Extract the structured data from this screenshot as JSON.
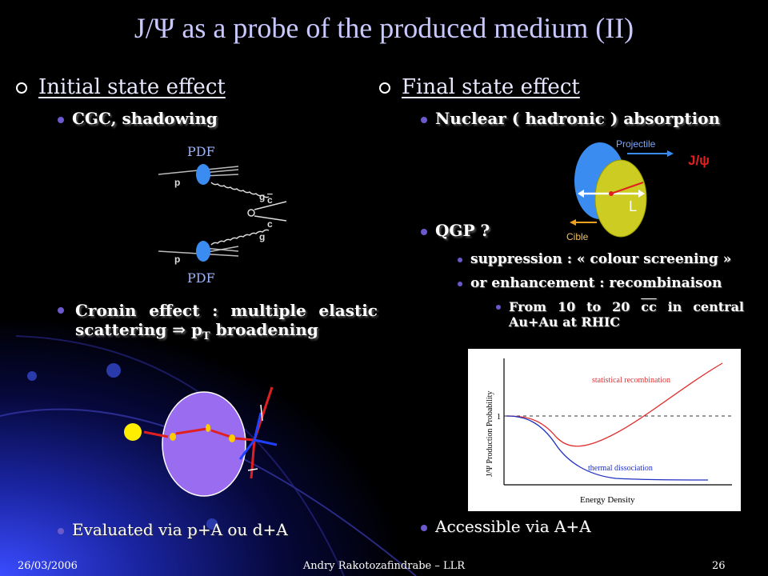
{
  "slide": {
    "title": "J/Ψ as a probe of the produced medium (II)",
    "left": {
      "heading": "Initial state effect",
      "item1": "CGC, shadowing",
      "pdf_top": "PDF",
      "pdf_bottom": "PDF",
      "feynman": {
        "p1": "p",
        "p2": "p",
        "g1": "g",
        "g2": "g",
        "c1": "c",
        "c2": "c"
      },
      "item2_line1": "Cronin effect : multiple elastic",
      "item2_line2_a": "scattering ",
      "item2_arrow": "⇒",
      "item2_line2_b": " p",
      "item2_sub": "T",
      "item2_line2_c": " broadening",
      "item3": "Evaluated via p+A ou d+A"
    },
    "right": {
      "heading": "Final state effect",
      "item1": "Nuclear ( hadronic ) absorption",
      "diagram": {
        "projectile": "Projectile",
        "jpsi": "J/ψ",
        "length": "L",
        "cible": "Cible"
      },
      "item2": "QGP ?",
      "sub1": "suppression : « colour screening »",
      "sub2": "or enhancement : recombinaison",
      "subsub_line1_a": "From 10 to 20 ",
      "subsub_cc": "cc",
      "subsub_line1_b": " in central",
      "subsub_line2": "Au+Au at RHIC",
      "graph": {
        "ylabel": "J/Ψ Production Probability",
        "xlabel": "Energy Density",
        "y_tick": "1",
        "curve1": "statistical recombination",
        "curve2": "thermal dissociation"
      },
      "item3": "Accessible via A+A"
    }
  },
  "footer": {
    "date": "26/03/2006",
    "author": "Andry Rakotozafindrabe – LLR",
    "page": "26"
  },
  "colors": {
    "background": "#000000",
    "title": "#c8c8ff",
    "bullet": "#6a5acd",
    "blue_glow": "#1a2a9a",
    "red_curve": "#e03030",
    "blue_curve": "#2030c0"
  }
}
